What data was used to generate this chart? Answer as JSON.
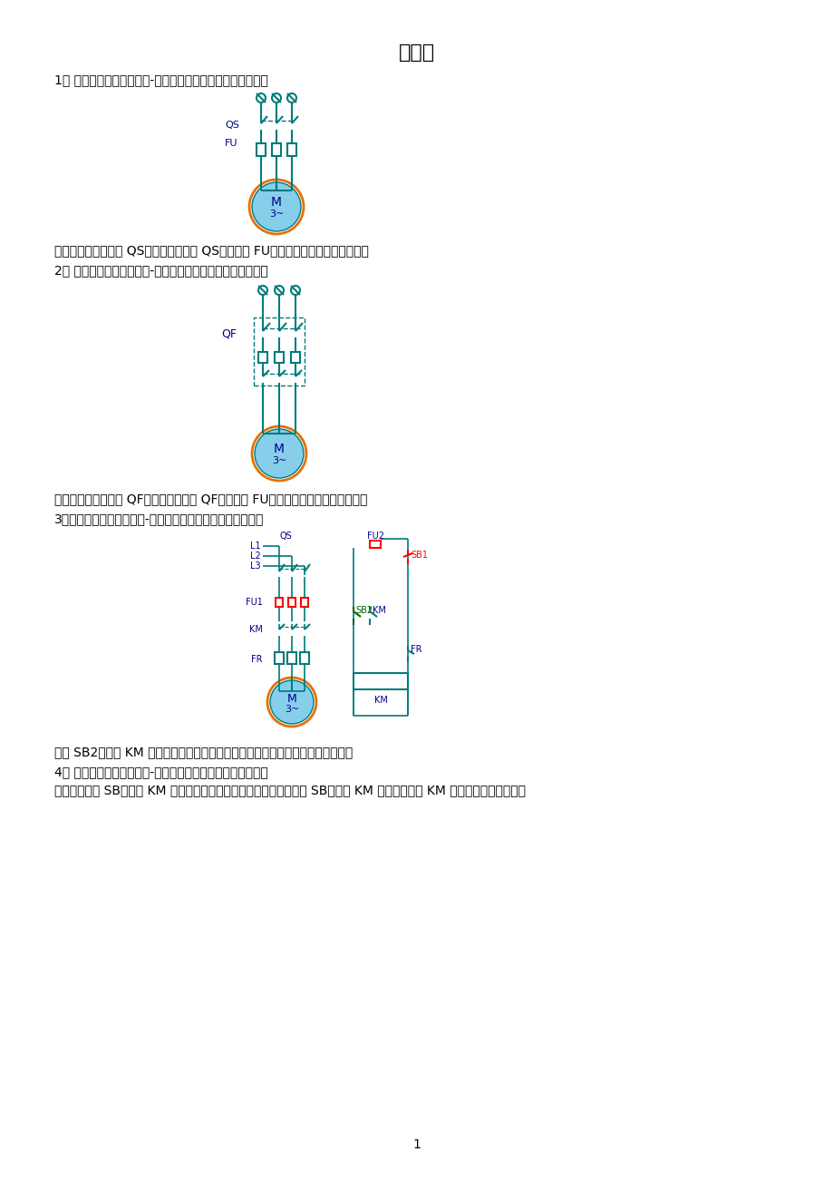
{
  "title": "分析题",
  "bg_color": "#ffffff",
  "teal": "#007B7B",
  "blue": "#00008B",
  "red": "#FF0000",
  "green": "#006400",
  "orange": "#E87000",
  "light_blue": "#87CEEB",
  "q1_label": "1、 请根据如图所示的继电-接触控制电路图，分析控制过程。",
  "q1_ans": "解：闭合低压隔离器 QS，三相交流电经 QS、熔断器 FU、进入电机。电机得电运转。",
  "q2_label": "2、 请根据如图所示的继电-接触控制电路图，分析控制过程。",
  "q2_ans": "解：闭合低压断路器 QF，三相交流电经 QF、熔断器 FU、进入电机。电机得电运转。",
  "q3_label": "3、请根据如图所示的继电-接触控制电路图，分析控制过程。",
  "q3_ans": "按下 SB2，线圈 KM 得电，其辅助触点和线圈自锁。主触点闭合，电机得电旋转。",
  "q4_label": "4、 请根据如图所示的继电-接触控制电路图，分析控制过程。",
  "q4_ans": "按下启动开关 SB，线圈 KM 得电，主触点闭合，电机得电转动；松开 SB，线圈 KM 失电，主触点 KM 断开，电机失电停转。",
  "page_num": "1"
}
